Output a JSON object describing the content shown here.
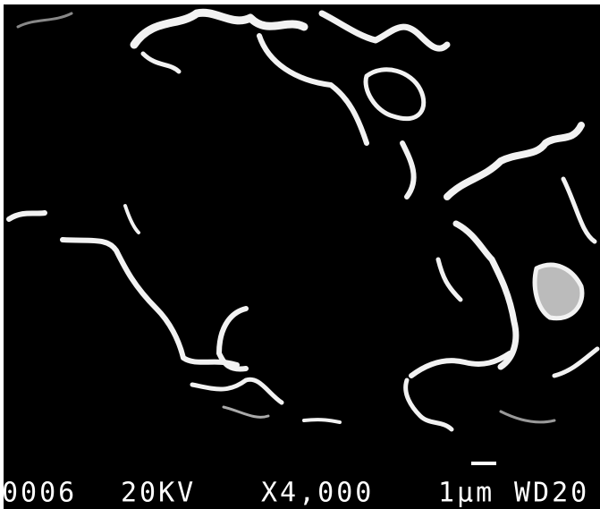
{
  "info_bar": {
    "image_number": "0006",
    "voltage": "20KV",
    "magnification": "X4,000",
    "scale": "1μm",
    "working_distance": "WD20"
  }
}
